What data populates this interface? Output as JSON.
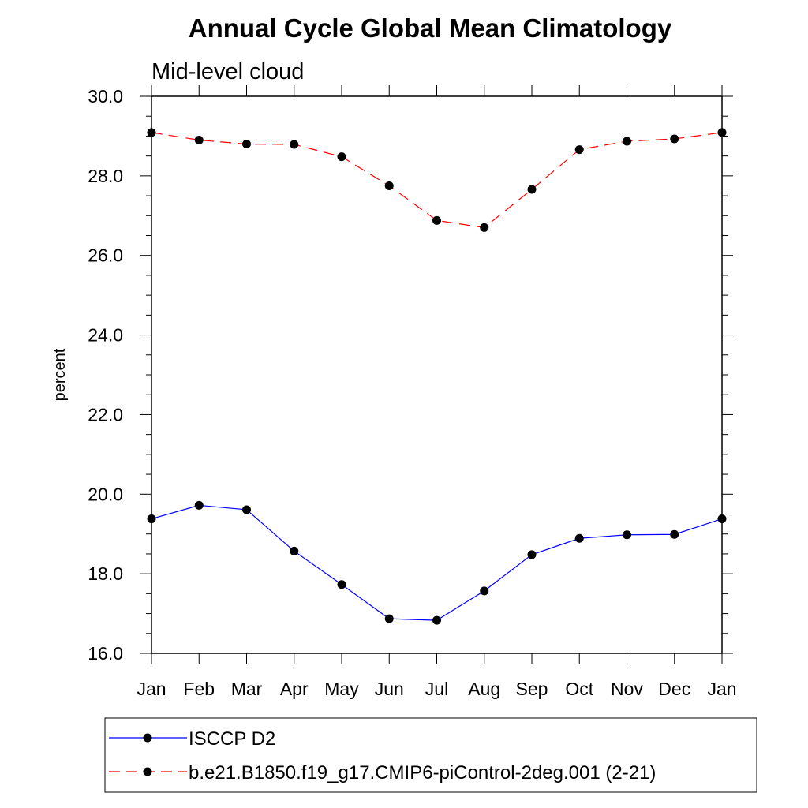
{
  "chart_data": {
    "type": "line",
    "title": "Annual Cycle Global Mean Climatology",
    "subtitle": "Mid-level cloud",
    "xlabel": "",
    "ylabel": "percent",
    "ylim": [
      16.0,
      30.0
    ],
    "ytick_values": [
      16,
      18,
      20,
      22,
      24,
      26,
      28,
      30
    ],
    "yticks": [
      "16.0",
      "18.0",
      "20.0",
      "22.0",
      "24.0",
      "26.0",
      "28.0",
      "30.0"
    ],
    "categories": [
      "Jan",
      "Feb",
      "Mar",
      "Apr",
      "May",
      "Jun",
      "Jul",
      "Aug",
      "Sep",
      "Oct",
      "Nov",
      "Dec",
      "Jan"
    ],
    "grid": false,
    "legend_position": "bottom",
    "series": [
      {
        "name": "ISCCP D2",
        "color": "#0000ff",
        "style": "solid",
        "values": [
          19.38,
          19.72,
          19.61,
          18.57,
          17.73,
          16.87,
          16.83,
          17.57,
          18.48,
          18.89,
          18.98,
          18.99,
          19.38
        ]
      },
      {
        "name": "b.e21.B1850.f19_g17.CMIP6-piControl-2deg.001 (2-21)",
        "color": "#ff0000",
        "style": "dashed",
        "values": [
          29.09,
          28.9,
          28.8,
          28.79,
          28.48,
          27.75,
          26.88,
          26.7,
          27.66,
          28.66,
          28.87,
          28.93,
          29.09
        ]
      }
    ]
  }
}
